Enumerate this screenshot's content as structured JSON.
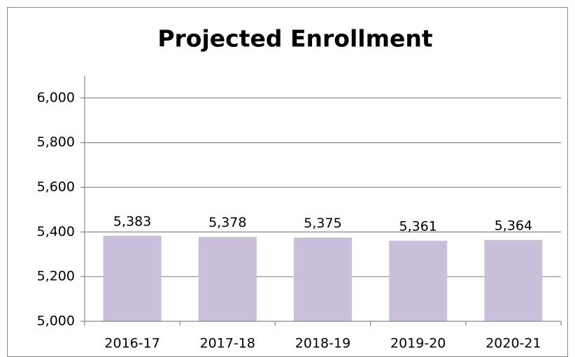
{
  "chart_data": {
    "type": "bar",
    "title": "Projected Enrollment",
    "categories": [
      "2016-17",
      "2017-18",
      "2018-19",
      "2019-20",
      "2020-21"
    ],
    "values": [
      5383,
      5378,
      5375,
      5361,
      5364
    ],
    "value_labels": [
      "5,383",
      "5,378",
      "5,375",
      "5,361",
      "5,364"
    ],
    "color": "#c9bfdb",
    "ylim": [
      5000,
      6100
    ],
    "yticks": [
      {
        "value": 5000,
        "label": "5,000"
      },
      {
        "value": 5200,
        "label": "5,200"
      },
      {
        "value": 5400,
        "label": "5,400"
      },
      {
        "value": 5600,
        "label": "5,600"
      },
      {
        "value": 5800,
        "label": "5,800"
      },
      {
        "value": 6000,
        "label": "6,000"
      }
    ],
    "grid": true
  }
}
